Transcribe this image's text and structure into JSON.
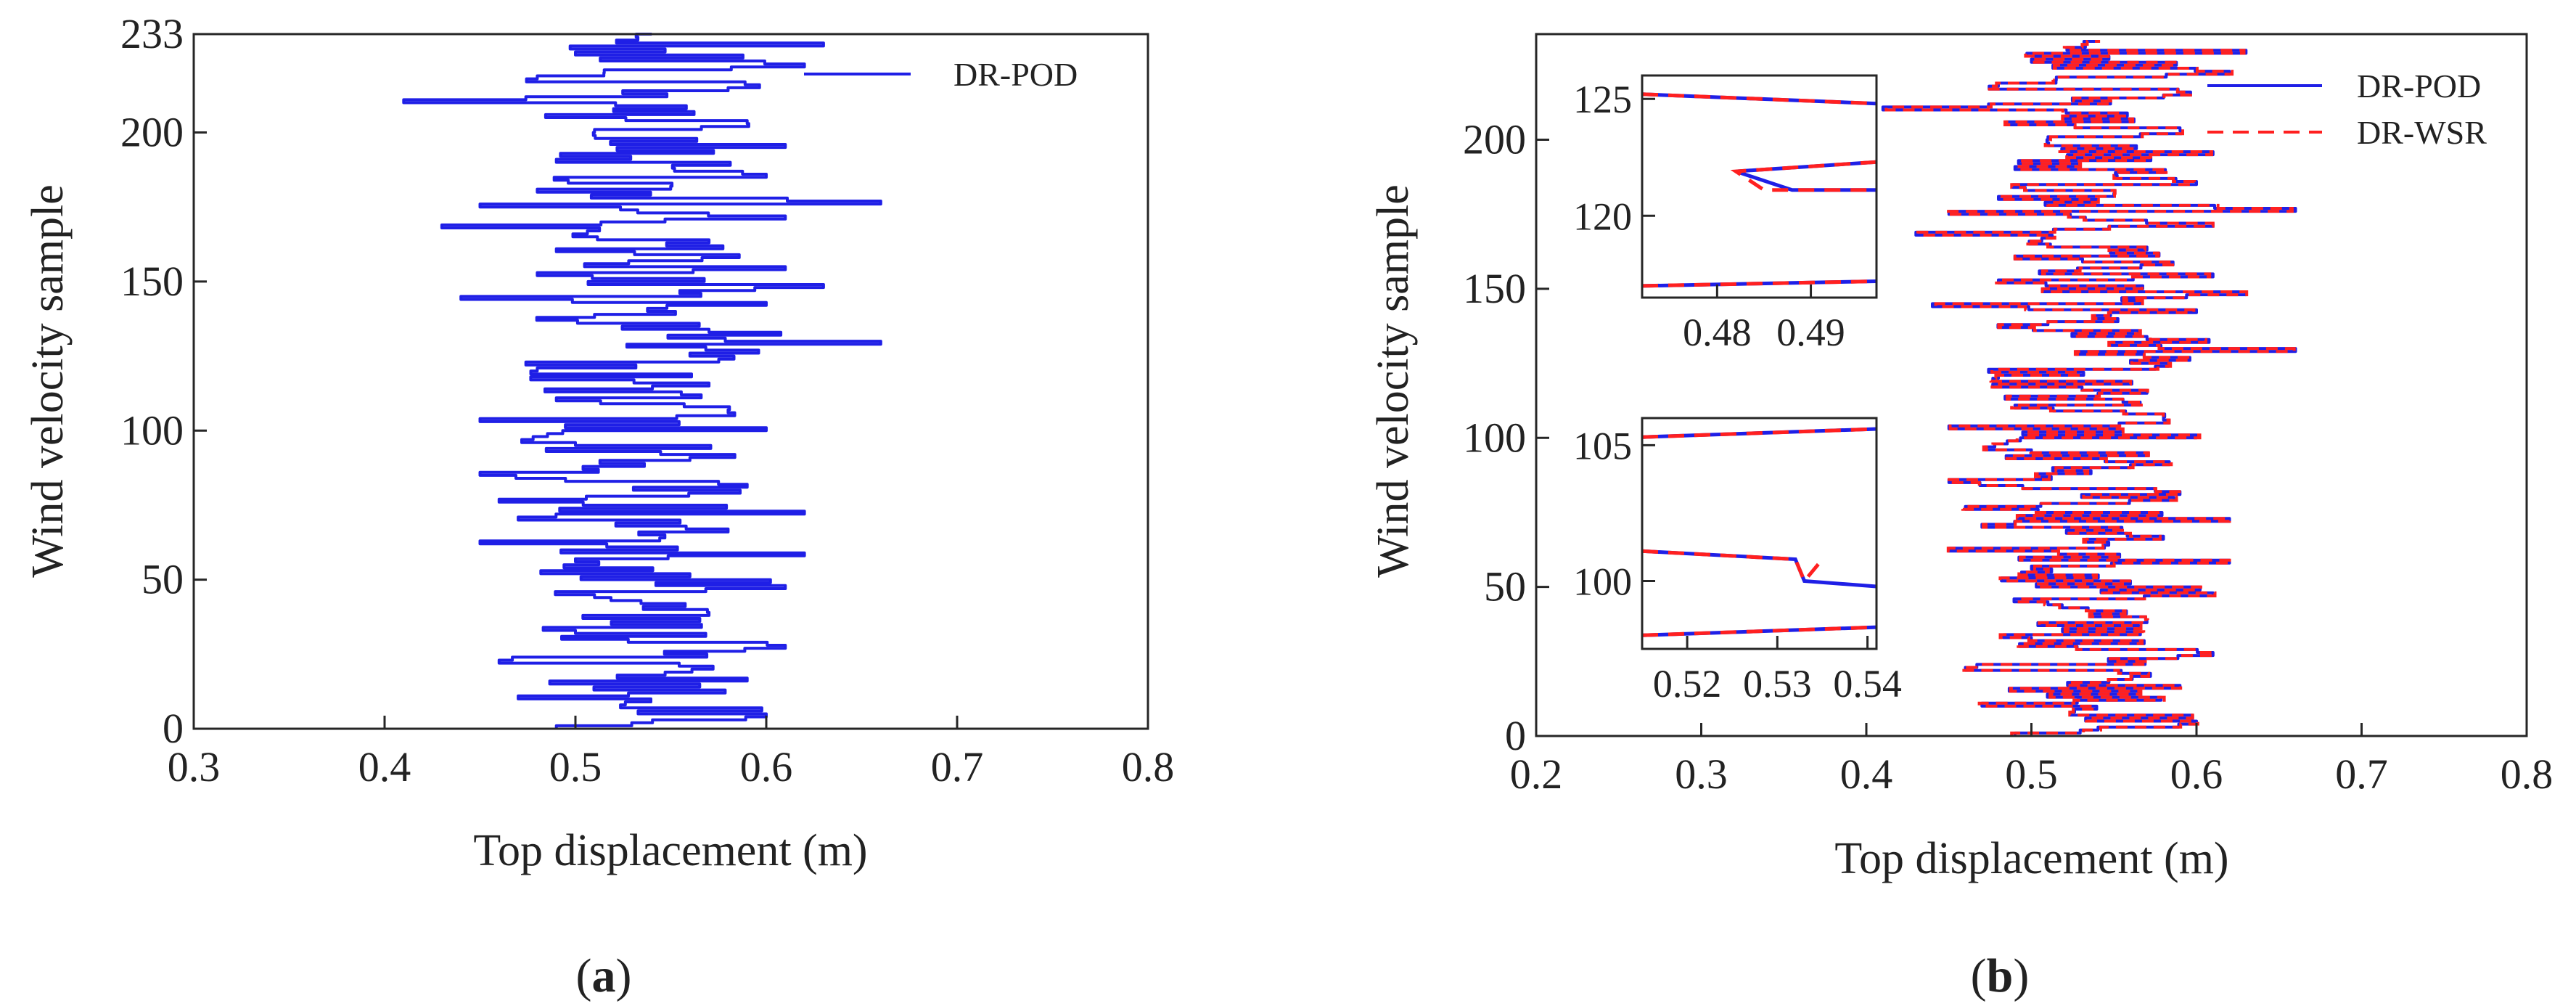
{
  "colors": {
    "pod": "#1f1fe6",
    "wsr": "#ff2020",
    "axis": "#262626"
  },
  "chart_data": [
    {
      "id": "a",
      "type": "line",
      "panel_label": {
        "open": "(",
        "letter": "a",
        "close": ")"
      },
      "xlabel": "Top displacement (m)",
      "ylabel": "Wind velocity sample",
      "xlim": [
        0.3,
        0.8
      ],
      "ylim": [
        0,
        233
      ],
      "xticks": [
        0.3,
        0.4,
        0.5,
        0.6,
        0.7,
        0.8
      ],
      "xtick_labels": [
        "0.3",
        "0.4",
        "0.5",
        "0.6",
        "0.7",
        "0.8"
      ],
      "yticks": [
        0,
        50,
        100,
        150,
        200,
        233
      ],
      "ytick_labels": [
        "0",
        "50",
        "100",
        "150",
        "200",
        "233"
      ],
      "legend": {
        "position": "top-right",
        "entries": [
          {
            "name": "DR-POD",
            "style": "solid",
            "color": "#1f1fe6"
          }
        ]
      },
      "series": [
        {
          "name": "DR-POD",
          "style": "solid",
          "color": "#1f1fe6",
          "description": "top displacement for each of 233 wind velocity samples",
          "anchors": [
            [
              0,
              0.49
            ],
            [
              4,
              0.6
            ],
            [
              10,
              0.47
            ],
            [
              16,
              0.59
            ],
            [
              22,
              0.46
            ],
            [
              27,
              0.61
            ],
            [
              32,
              0.5
            ],
            [
              38,
              0.57
            ],
            [
              44,
              0.51
            ],
            [
              47,
              0.61
            ],
            [
              51,
              0.56
            ],
            [
              56,
              0.5
            ],
            [
              58,
              0.62
            ],
            [
              62,
              0.45
            ],
            [
              66,
              0.58
            ],
            [
              70,
              0.47
            ],
            [
              72,
              0.62
            ],
            [
              76,
              0.46
            ],
            [
              81,
              0.59
            ],
            [
              85,
              0.45
            ],
            [
              90,
              0.56
            ],
            [
              95,
              0.5
            ],
            [
              100,
              0.6
            ],
            [
              103,
              0.45
            ],
            [
              106,
              0.58
            ],
            [
              110,
              0.49
            ],
            [
              115,
              0.57
            ],
            [
              120,
              0.48
            ],
            [
              125,
              0.56
            ],
            [
              129,
              0.66
            ],
            [
              133,
              0.57
            ],
            [
              138,
              0.51
            ],
            [
              142,
              0.6
            ],
            [
              144,
              0.44
            ],
            [
              148,
              0.63
            ],
            [
              152,
              0.48
            ],
            [
              154,
              0.61
            ],
            [
              160,
              0.49
            ],
            [
              163,
              0.57
            ],
            [
              168,
              0.43
            ],
            [
              171,
              0.61
            ],
            [
              175,
              0.45
            ],
            [
              176,
              0.66
            ],
            [
              180,
              0.48
            ],
            [
              185,
              0.6
            ],
            [
              190,
              0.49
            ],
            [
              195,
              0.61
            ],
            [
              200,
              0.51
            ],
            [
              203,
              0.59
            ],
            [
              207,
              0.52
            ],
            [
              210,
              0.41
            ],
            [
              214,
              0.58
            ],
            [
              218,
              0.48
            ],
            [
              222,
              0.62
            ],
            [
              226,
              0.5
            ],
            [
              229,
              0.63
            ],
            [
              233,
              0.54
            ]
          ],
          "mean": 0.53
        }
      ]
    },
    {
      "id": "b",
      "type": "line",
      "panel_label": {
        "open": "(",
        "letter": "b",
        "close": ")"
      },
      "xlabel": "Top displacement (m)",
      "ylabel": "Wind velocity sample",
      "xlim": [
        0.2,
        0.8
      ],
      "ylim": [
        0,
        233
      ],
      "xticks": [
        0.2,
        0.3,
        0.4,
        0.5,
        0.6,
        0.7,
        0.8
      ],
      "xtick_labels": [
        "0.2",
        "0.3",
        "0.4",
        "0.5",
        "0.6",
        "0.7",
        "0.8"
      ],
      "yticks": [
        0,
        50,
        100,
        150,
        200
      ],
      "ytick_labels": [
        "0",
        "50",
        "100",
        "150",
        "200"
      ],
      "legend": {
        "position": "top-right",
        "entries": [
          {
            "name": "DR-POD",
            "style": "solid",
            "color": "#1f1fe6"
          },
          {
            "name": "DR-WSR",
            "style": "dashed",
            "color": "#ff2020"
          }
        ]
      },
      "series": [
        {
          "name": "DR-POD",
          "style": "solid",
          "color": "#1f1fe6",
          "same_as": "a"
        },
        {
          "name": "DR-WSR",
          "style": "dashed",
          "color": "#ff2020",
          "same_as": "a"
        }
      ],
      "insets": [
        {
          "id": "inset-top",
          "location": "upper-left",
          "xlim": [
            0.472,
            0.497
          ],
          "ylim": [
            116.5,
            126
          ],
          "xticks": [
            0.48,
            0.49
          ],
          "xtick_labels": [
            "0.48",
            "0.49"
          ],
          "yticks": [
            120,
            125
          ],
          "ytick_labels": [
            "120",
            "125"
          ],
          "series": [
            {
              "name": "DR-POD",
              "points": [
                [
                  0.472,
                  125.2
                ],
                [
                  0.497,
                  124.8
                ]
              ]
            },
            {
              "name": "DR-POD",
              "points": [
                [
                  0.497,
                  122.3
                ],
                [
                  0.482,
                  121.9
                ],
                [
                  0.488,
                  121.1
                ],
                [
                  0.497,
                  121.1
                ]
              ]
            },
            {
              "name": "DR-POD",
              "points": [
                [
                  0.472,
                  117.0
                ],
                [
                  0.497,
                  117.2
                ]
              ]
            },
            {
              "name": "DR-WSR",
              "points": [
                [
                  0.472,
                  125.2
                ],
                [
                  0.497,
                  124.8
                ]
              ]
            },
            {
              "name": "DR-WSR",
              "points": [
                [
                  0.497,
                  122.3
                ],
                [
                  0.482,
                  121.9
                ],
                [
                  0.485,
                  121.1
                ],
                [
                  0.497,
                  121.1
                ]
              ]
            },
            {
              "name": "DR-WSR",
              "points": [
                [
                  0.472,
                  117.0
                ],
                [
                  0.497,
                  117.2
                ]
              ]
            }
          ]
        },
        {
          "id": "inset-bottom",
          "location": "lower-left",
          "xlim": [
            0.515,
            0.541
          ],
          "ylim": [
            97.5,
            106
          ],
          "xticks": [
            0.52,
            0.53,
            0.54
          ],
          "xtick_labels": [
            "0.52",
            "0.53",
            "0.54"
          ],
          "yticks": [
            100,
            105
          ],
          "ytick_labels": [
            "100",
            "105"
          ],
          "series": [
            {
              "name": "DR-POD",
              "points": [
                [
                  0.515,
                  105.3
                ],
                [
                  0.541,
                  105.6
                ]
              ]
            },
            {
              "name": "DR-POD",
              "points": [
                [
                  0.515,
                  101.1
                ],
                [
                  0.532,
                  100.8
                ],
                [
                  0.533,
                  100.0
                ],
                [
                  0.541,
                  99.8
                ]
              ]
            },
            {
              "name": "DR-POD",
              "points": [
                [
                  0.515,
                  98.0
                ],
                [
                  0.541,
                  98.3
                ]
              ]
            },
            {
              "name": "DR-WSR",
              "points": [
                [
                  0.515,
                  105.3
                ],
                [
                  0.541,
                  105.6
                ]
              ]
            },
            {
              "name": "DR-WSR",
              "points": [
                [
                  0.515,
                  101.1
                ],
                [
                  0.532,
                  100.8
                ],
                [
                  0.533,
                  100.0
                ],
                [
                  0.535,
                  100.8
                ]
              ]
            },
            {
              "name": "DR-WSR",
              "points": [
                [
                  0.515,
                  98.0
                ],
                [
                  0.541,
                  98.3
                ]
              ]
            }
          ]
        }
      ]
    }
  ]
}
